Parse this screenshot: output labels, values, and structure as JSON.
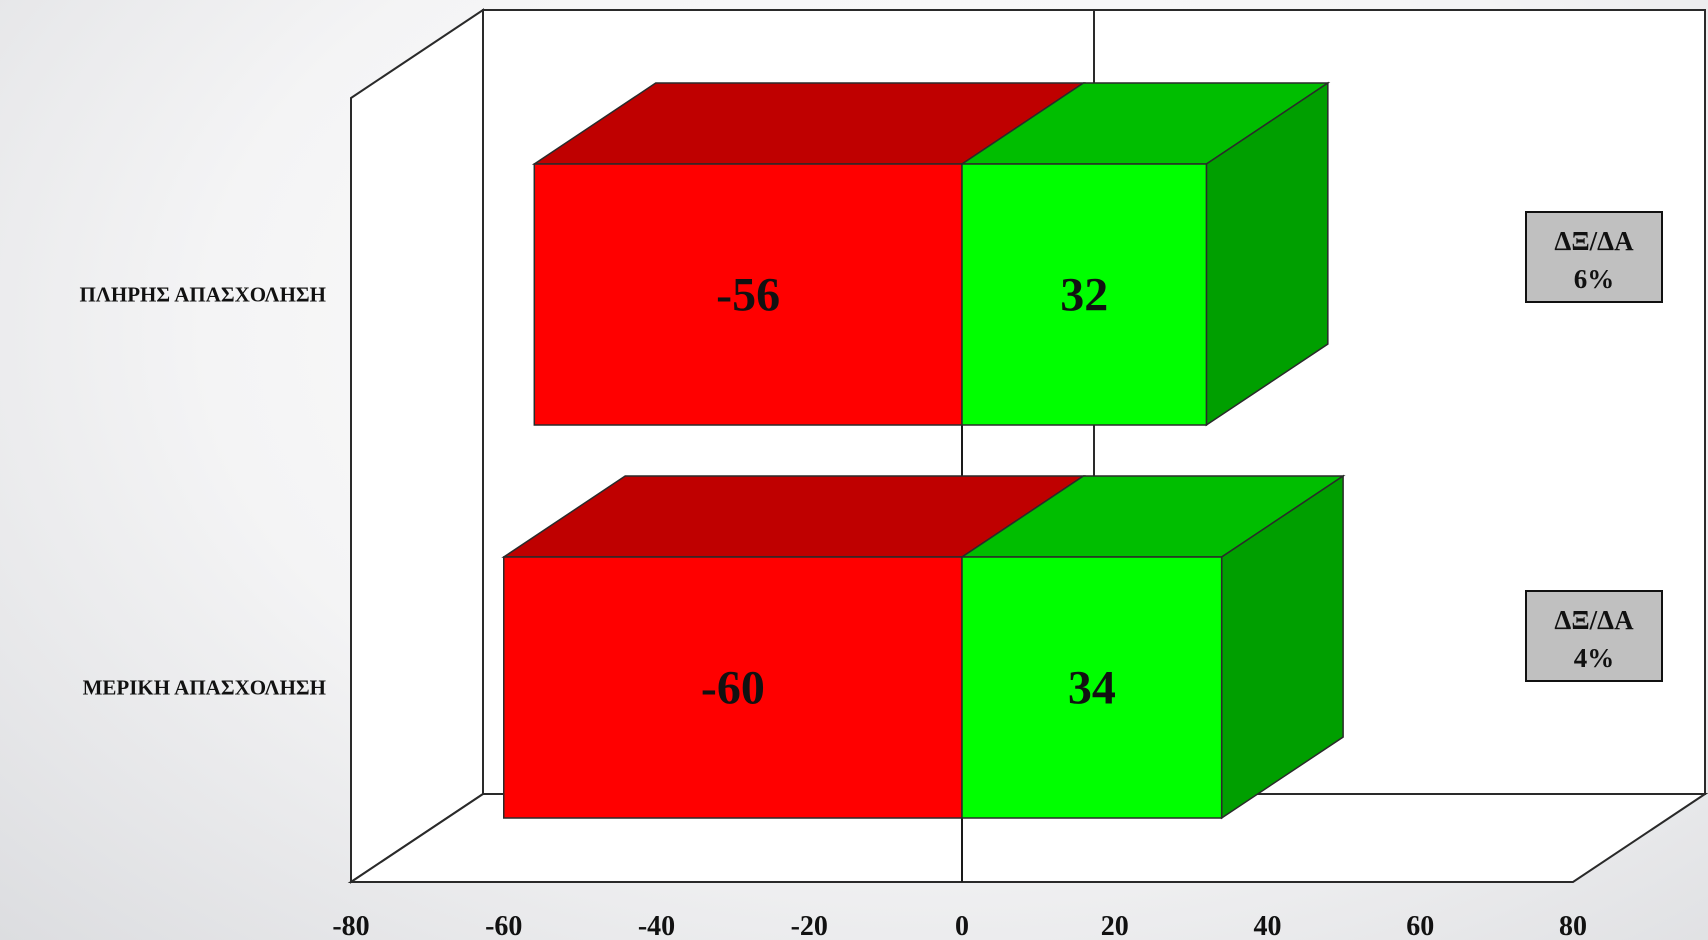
{
  "chart_data": {
    "type": "bar",
    "orientation": "horizontal",
    "style": "3d-stacked-diverging",
    "categories": [
      "ΠΛΗΡΗΣ ΑΠΑΣΧΟΛΗΣΗ",
      "ΜΕΡΙΚΗ ΑΠΑΣΧΟΛΗΣΗ"
    ],
    "series": [
      {
        "values": [
          -56,
          -60
        ],
        "color": "#ff0000",
        "top_color": "#bf0000"
      },
      {
        "values": [
          32,
          34
        ],
        "color": "#00ff00",
        "top_color": "#00be00",
        "side_color": "#009f00"
      }
    ],
    "annotations": [
      {
        "line1": "ΔΞ/ΔΑ",
        "line2": "6%"
      },
      {
        "line1": "ΔΞ/ΔΑ",
        "line2": "4%"
      }
    ],
    "xlim": [
      -80,
      80
    ],
    "xticks": [
      "-80",
      "-60",
      "-40",
      "-20",
      "0",
      "20",
      "40",
      "60",
      "80"
    ],
    "title": "",
    "xlabel": "",
    "ylabel": "",
    "grid": false,
    "legend": "none"
  }
}
